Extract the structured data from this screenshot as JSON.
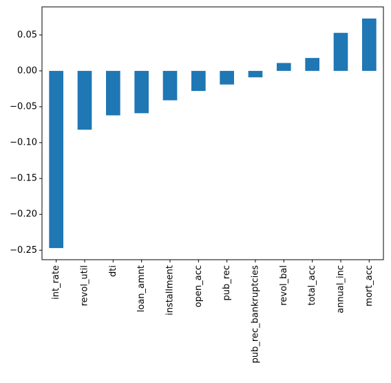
{
  "chart_data": {
    "type": "bar",
    "title": "",
    "xlabel": "",
    "ylabel": "",
    "categories": [
      "int_rate",
      "revol_util",
      "dti",
      "loan_amnt",
      "installment",
      "open_acc",
      "pub_rec",
      "pub_rec_bankruptcies",
      "revol_bal",
      "total_acc",
      "annual_inc",
      "mort_acc"
    ],
    "values": [
      -0.247,
      -0.082,
      -0.062,
      -0.059,
      -0.041,
      -0.028,
      -0.019,
      -0.009,
      0.011,
      0.018,
      0.053,
      0.073
    ],
    "ylim": [
      -0.2632,
      0.0892
    ],
    "yticks": [
      -0.25,
      -0.2,
      -0.15,
      -0.1,
      -0.05,
      0.0,
      0.05
    ],
    "ytick_labels": [
      "−0.25",
      "−0.20",
      "−0.15",
      "−0.10",
      "−0.05",
      "0.00",
      "0.05"
    ],
    "bar_color": "#1f77b4",
    "grid": false,
    "legend": "none"
  }
}
